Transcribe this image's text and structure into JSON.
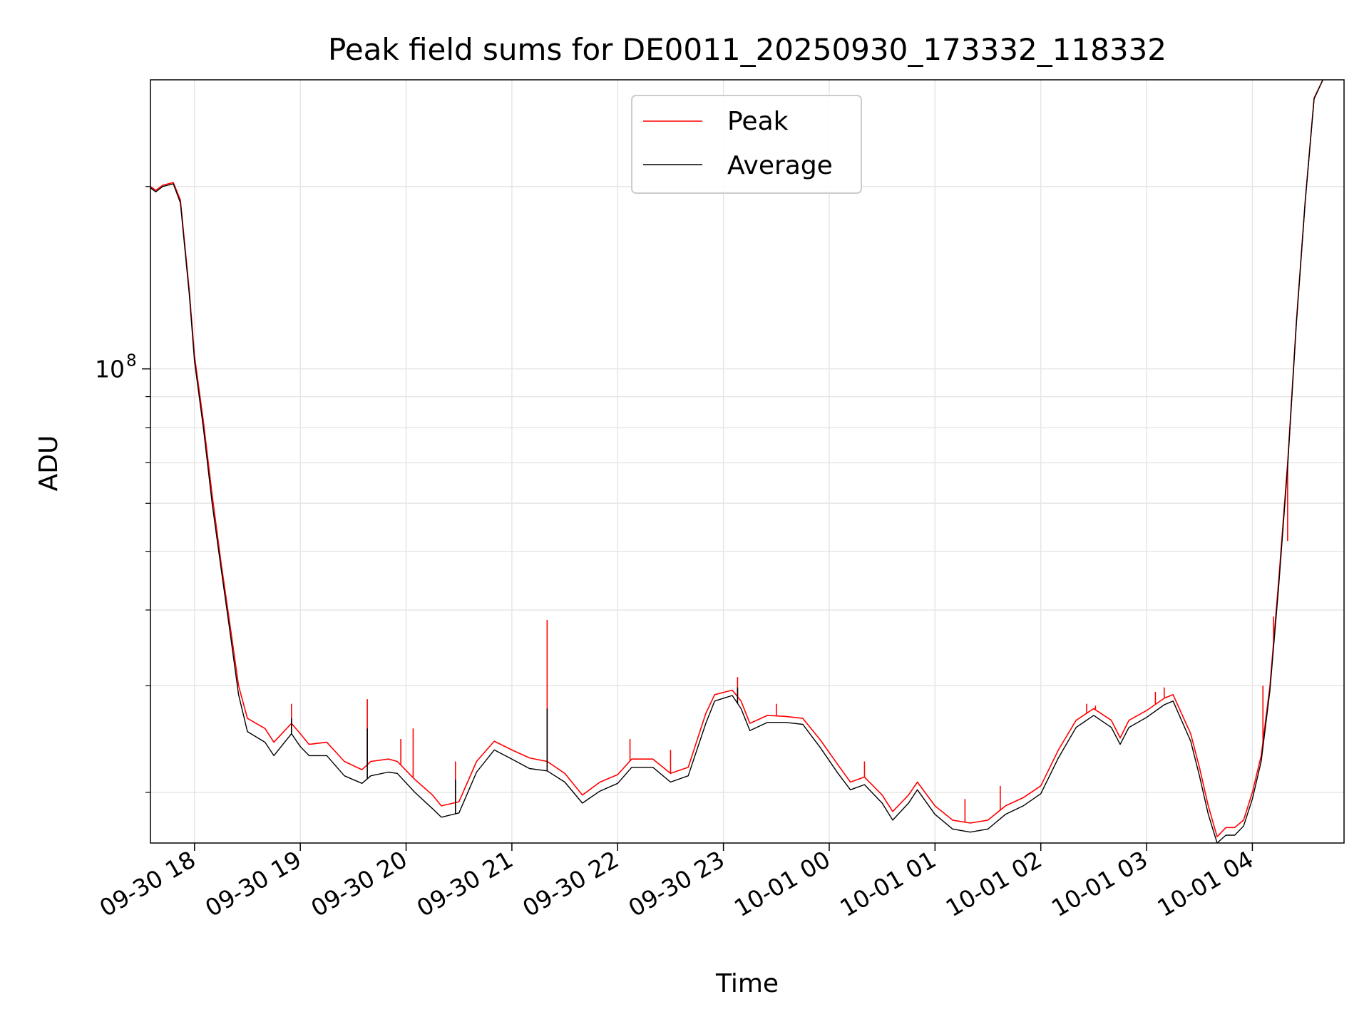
{
  "chart_data": {
    "type": "line",
    "title": "Peak field sums for DE0011_20250930_173332_118332",
    "xlabel": "Time",
    "ylabel": "ADU",
    "y_scale": "log",
    "grid": true,
    "grid_minor": true,
    "legend_position": "top-center",
    "xlim": [
      "2025-09-30 17:35",
      "2025-10-01 04:52"
    ],
    "ylim": [
      16500000,
      300000000
    ],
    "x_ticks": [
      {
        "t": "2025-09-30 18:00",
        "label": "09-30 18"
      },
      {
        "t": "2025-09-30 19:00",
        "label": "09-30 19"
      },
      {
        "t": "2025-09-30 20:00",
        "label": "09-30 20"
      },
      {
        "t": "2025-09-30 21:00",
        "label": "09-30 21"
      },
      {
        "t": "2025-09-30 22:00",
        "label": "09-30 22"
      },
      {
        "t": "2025-09-30 23:00",
        "label": "09-30 23"
      },
      {
        "t": "2025-10-01 00:00",
        "label": "10-01 00"
      },
      {
        "t": "2025-10-01 01:00",
        "label": "10-01 01"
      },
      {
        "t": "2025-10-01 02:00",
        "label": "10-01 02"
      },
      {
        "t": "2025-10-01 03:00",
        "label": "10-01 03"
      },
      {
        "t": "2025-10-01 04:00",
        "label": "10-01 04"
      }
    ],
    "y_ticks": [
      {
        "value": 100000000,
        "base": "10",
        "exp": "8"
      }
    ],
    "y_minor_ticks": [
      20000000,
      30000000,
      40000000,
      50000000,
      60000000,
      70000000,
      80000000,
      90000000,
      200000000
    ],
    "series": [
      {
        "name": "Peak",
        "color": "#ff0000",
        "points": [
          [
            "2025-09-30 17:35",
            200000000
          ],
          [
            "2025-09-30 17:38",
            197000000
          ],
          [
            "2025-09-30 17:42",
            201000000
          ],
          [
            "2025-09-30 17:48",
            203000000
          ],
          [
            "2025-09-30 17:52",
            190000000
          ],
          [
            "2025-09-30 17:57",
            135000000
          ],
          [
            "2025-09-30 18:00",
            105000000
          ],
          [
            "2025-09-30 18:05",
            82000000
          ],
          [
            "2025-09-30 18:10",
            62000000
          ],
          [
            "2025-09-30 18:15",
            48000000
          ],
          [
            "2025-09-30 18:20",
            38000000
          ],
          [
            "2025-09-30 18:25",
            30000000
          ],
          [
            "2025-09-30 18:30",
            26500000
          ],
          [
            "2025-09-30 18:40",
            25500000
          ],
          [
            "2025-09-30 18:45",
            24200000
          ],
          [
            "2025-09-30 18:55",
            26000000
          ],
          [
            "2025-09-30 19:00",
            25000000
          ],
          [
            "2025-09-30 19:05",
            24000000
          ],
          [
            "2025-09-30 19:15",
            24200000
          ],
          [
            "2025-09-30 19:25",
            22500000
          ],
          [
            "2025-09-30 19:35",
            21800000
          ],
          [
            "2025-09-30 19:40",
            22500000
          ],
          [
            "2025-09-30 19:50",
            22700000
          ],
          [
            "2025-09-30 19:55",
            22500000
          ],
          [
            "2025-09-30 20:05",
            21000000
          ],
          [
            "2025-09-30 20:15",
            19800000
          ],
          [
            "2025-09-30 20:20",
            19000000
          ],
          [
            "2025-09-30 20:30",
            19300000
          ],
          [
            "2025-09-30 20:40",
            22500000
          ],
          [
            "2025-09-30 20:50",
            24300000
          ],
          [
            "2025-09-30 21:00",
            23500000
          ],
          [
            "2025-09-30 21:10",
            22800000
          ],
          [
            "2025-09-30 21:20",
            22500000
          ],
          [
            "2025-09-30 21:30",
            21500000
          ],
          [
            "2025-09-30 21:40",
            19800000
          ],
          [
            "2025-09-30 21:50",
            20800000
          ],
          [
            "2025-09-30 22:00",
            21400000
          ],
          [
            "2025-09-30 22:08",
            22700000
          ],
          [
            "2025-09-30 22:20",
            22700000
          ],
          [
            "2025-09-30 22:30",
            21500000
          ],
          [
            "2025-09-30 22:40",
            22000000
          ],
          [
            "2025-09-30 22:50",
            27000000
          ],
          [
            "2025-09-30 22:55",
            29000000
          ],
          [
            "2025-09-30 23:05",
            29500000
          ],
          [
            "2025-09-30 23:10",
            28300000
          ],
          [
            "2025-09-30 23:15",
            26000000
          ],
          [
            "2025-09-30 23:25",
            26800000
          ],
          [
            "2025-09-30 23:35",
            26700000
          ],
          [
            "2025-09-30 23:45",
            26500000
          ],
          [
            "2025-09-30 23:55",
            24400000
          ],
          [
            "2025-10-01 00:05",
            22200000
          ],
          [
            "2025-10-01 00:12",
            20800000
          ],
          [
            "2025-10-01 00:20",
            21200000
          ],
          [
            "2025-10-01 00:30",
            19800000
          ],
          [
            "2025-10-01 00:36",
            18600000
          ],
          [
            "2025-10-01 00:45",
            19800000
          ],
          [
            "2025-10-01 00:50",
            20800000
          ],
          [
            "2025-10-01 01:00",
            19000000
          ],
          [
            "2025-10-01 01:10",
            18000000
          ],
          [
            "2025-10-01 01:20",
            17800000
          ],
          [
            "2025-10-01 01:30",
            18000000
          ],
          [
            "2025-10-01 01:40",
            19000000
          ],
          [
            "2025-10-01 01:50",
            19600000
          ],
          [
            "2025-10-01 02:00",
            20500000
          ],
          [
            "2025-10-01 02:10",
            23500000
          ],
          [
            "2025-10-01 02:20",
            26300000
          ],
          [
            "2025-10-01 02:30",
            27500000
          ],
          [
            "2025-10-01 02:40",
            26300000
          ],
          [
            "2025-10-01 02:45",
            24600000
          ],
          [
            "2025-10-01 02:50",
            26300000
          ],
          [
            "2025-10-01 03:00",
            27300000
          ],
          [
            "2025-10-01 03:10",
            28600000
          ],
          [
            "2025-10-01 03:15",
            29000000
          ],
          [
            "2025-10-01 03:25",
            25000000
          ],
          [
            "2025-10-01 03:30",
            22000000
          ],
          [
            "2025-10-01 03:35",
            19000000
          ],
          [
            "2025-10-01 03:40",
            16900000
          ],
          [
            "2025-10-01 03:45",
            17500000
          ],
          [
            "2025-10-01 03:50",
            17500000
          ],
          [
            "2025-10-01 03:55",
            18000000
          ],
          [
            "2025-10-01 04:00",
            20000000
          ],
          [
            "2025-10-01 04:05",
            23000000
          ],
          [
            "2025-10-01 04:10",
            30000000
          ],
          [
            "2025-10-01 04:15",
            45000000
          ],
          [
            "2025-10-01 04:20",
            70000000
          ],
          [
            "2025-10-01 04:25",
            120000000
          ],
          [
            "2025-10-01 04:30",
            190000000
          ],
          [
            "2025-10-01 04:35",
            280000000
          ],
          [
            "2025-10-01 04:40",
            300000000
          ]
        ],
        "spikes": [
          [
            "2025-09-30 18:55",
            28000000
          ],
          [
            "2025-09-30 19:38",
            28500000
          ],
          [
            "2025-09-30 19:57",
            24500000
          ],
          [
            "2025-09-30 20:04",
            25500000
          ],
          [
            "2025-09-30 20:28",
            22500000
          ],
          [
            "2025-09-30 21:20",
            38500000
          ],
          [
            "2025-09-30 22:07",
            24500000
          ],
          [
            "2025-09-30 22:30",
            23500000
          ],
          [
            "2025-09-30 23:08",
            31000000
          ],
          [
            "2025-09-30 23:30",
            28000000
          ],
          [
            "2025-10-01 00:20",
            22500000
          ],
          [
            "2025-10-01 01:17",
            19500000
          ],
          [
            "2025-10-01 01:37",
            20500000
          ],
          [
            "2025-10-01 02:26",
            28000000
          ],
          [
            "2025-10-01 02:31",
            27800000
          ],
          [
            "2025-10-01 03:05",
            29300000
          ],
          [
            "2025-10-01 03:10",
            29800000
          ],
          [
            "2025-10-01 04:06",
            30000000
          ],
          [
            "2025-10-01 04:12",
            39000000
          ],
          [
            "2025-10-01 04:20",
            52000000
          ]
        ]
      },
      {
        "name": "Average",
        "color": "#000000",
        "points": [
          [
            "2025-09-30 17:35",
            199000000
          ],
          [
            "2025-09-30 17:38",
            196000000
          ],
          [
            "2025-09-30 17:42",
            200000000
          ],
          [
            "2025-09-30 17:48",
            202000000
          ],
          [
            "2025-09-30 17:52",
            188000000
          ],
          [
            "2025-09-30 17:57",
            133000000
          ],
          [
            "2025-09-30 18:00",
            103000000
          ],
          [
            "2025-09-30 18:05",
            80000000
          ],
          [
            "2025-09-30 18:10",
            60000000
          ],
          [
            "2025-09-30 18:15",
            47000000
          ],
          [
            "2025-09-30 18:20",
            37000000
          ],
          [
            "2025-09-30 18:25",
            29000000
          ],
          [
            "2025-09-30 18:30",
            25200000
          ],
          [
            "2025-09-30 18:40",
            24200000
          ],
          [
            "2025-09-30 18:45",
            23000000
          ],
          [
            "2025-09-30 18:55",
            25000000
          ],
          [
            "2025-09-30 19:00",
            23800000
          ],
          [
            "2025-09-30 19:05",
            23000000
          ],
          [
            "2025-09-30 19:15",
            23000000
          ],
          [
            "2025-09-30 19:25",
            21300000
          ],
          [
            "2025-09-30 19:35",
            20700000
          ],
          [
            "2025-09-30 19:40",
            21300000
          ],
          [
            "2025-09-30 19:50",
            21600000
          ],
          [
            "2025-09-30 19:55",
            21500000
          ],
          [
            "2025-09-30 20:05",
            20000000
          ],
          [
            "2025-09-30 20:15",
            18800000
          ],
          [
            "2025-09-30 20:20",
            18200000
          ],
          [
            "2025-09-30 20:30",
            18500000
          ],
          [
            "2025-09-30 20:40",
            21600000
          ],
          [
            "2025-09-30 20:50",
            23500000
          ],
          [
            "2025-09-30 21:00",
            22700000
          ],
          [
            "2025-09-30 21:10",
            21900000
          ],
          [
            "2025-09-30 21:20",
            21700000
          ],
          [
            "2025-09-30 21:30",
            20800000
          ],
          [
            "2025-09-30 21:40",
            19200000
          ],
          [
            "2025-09-30 21:50",
            20100000
          ],
          [
            "2025-09-30 22:00",
            20700000
          ],
          [
            "2025-09-30 22:08",
            22000000
          ],
          [
            "2025-09-30 22:20",
            22000000
          ],
          [
            "2025-09-30 22:30",
            20800000
          ],
          [
            "2025-09-30 22:40",
            21300000
          ],
          [
            "2025-09-30 22:50",
            26000000
          ],
          [
            "2025-09-30 22:55",
            28300000
          ],
          [
            "2025-09-30 23:05",
            28900000
          ],
          [
            "2025-09-30 23:10",
            27500000
          ],
          [
            "2025-09-30 23:15",
            25300000
          ],
          [
            "2025-09-30 23:25",
            26100000
          ],
          [
            "2025-09-30 23:35",
            26100000
          ],
          [
            "2025-09-30 23:45",
            25900000
          ],
          [
            "2025-09-30 23:55",
            23700000
          ],
          [
            "2025-10-01 00:05",
            21500000
          ],
          [
            "2025-10-01 00:12",
            20200000
          ],
          [
            "2025-10-01 00:20",
            20600000
          ],
          [
            "2025-10-01 00:30",
            19200000
          ],
          [
            "2025-10-01 00:36",
            18000000
          ],
          [
            "2025-10-01 00:45",
            19200000
          ],
          [
            "2025-10-01 00:50",
            20200000
          ],
          [
            "2025-10-01 01:00",
            18400000
          ],
          [
            "2025-10-01 01:10",
            17400000
          ],
          [
            "2025-10-01 01:20",
            17200000
          ],
          [
            "2025-10-01 01:30",
            17400000
          ],
          [
            "2025-10-01 01:40",
            18400000
          ],
          [
            "2025-10-01 01:50",
            19000000
          ],
          [
            "2025-10-01 02:00",
            19900000
          ],
          [
            "2025-10-01 02:10",
            22800000
          ],
          [
            "2025-10-01 02:20",
            25600000
          ],
          [
            "2025-10-01 02:30",
            26800000
          ],
          [
            "2025-10-01 02:40",
            25600000
          ],
          [
            "2025-10-01 02:45",
            24000000
          ],
          [
            "2025-10-01 02:50",
            25600000
          ],
          [
            "2025-10-01 03:00",
            26600000
          ],
          [
            "2025-10-01 03:10",
            27900000
          ],
          [
            "2025-10-01 03:15",
            28300000
          ],
          [
            "2025-10-01 03:25",
            24300000
          ],
          [
            "2025-10-01 03:30",
            21300000
          ],
          [
            "2025-10-01 03:35",
            18400000
          ],
          [
            "2025-10-01 03:40",
            16500000
          ],
          [
            "2025-10-01 03:45",
            17000000
          ],
          [
            "2025-10-01 03:50",
            17000000
          ],
          [
            "2025-10-01 03:55",
            17600000
          ],
          [
            "2025-10-01 04:00",
            19500000
          ],
          [
            "2025-10-01 04:05",
            22500000
          ],
          [
            "2025-10-01 04:10",
            29500000
          ],
          [
            "2025-10-01 04:15",
            44000000
          ],
          [
            "2025-10-01 04:20",
            69000000
          ],
          [
            "2025-10-01 04:25",
            119000000
          ],
          [
            "2025-10-01 04:30",
            189000000
          ],
          [
            "2025-10-01 04:35",
            279000000
          ],
          [
            "2025-10-01 04:40",
            300000000
          ]
        ],
        "spikes": [
          [
            "2025-09-30 18:55",
            26500000
          ],
          [
            "2025-09-30 19:38",
            25500000
          ],
          [
            "2025-09-30 20:28",
            21000000
          ],
          [
            "2025-09-30 21:20",
            27500000
          ],
          [
            "2025-09-30 23:08",
            29800000
          ]
        ]
      }
    ]
  }
}
